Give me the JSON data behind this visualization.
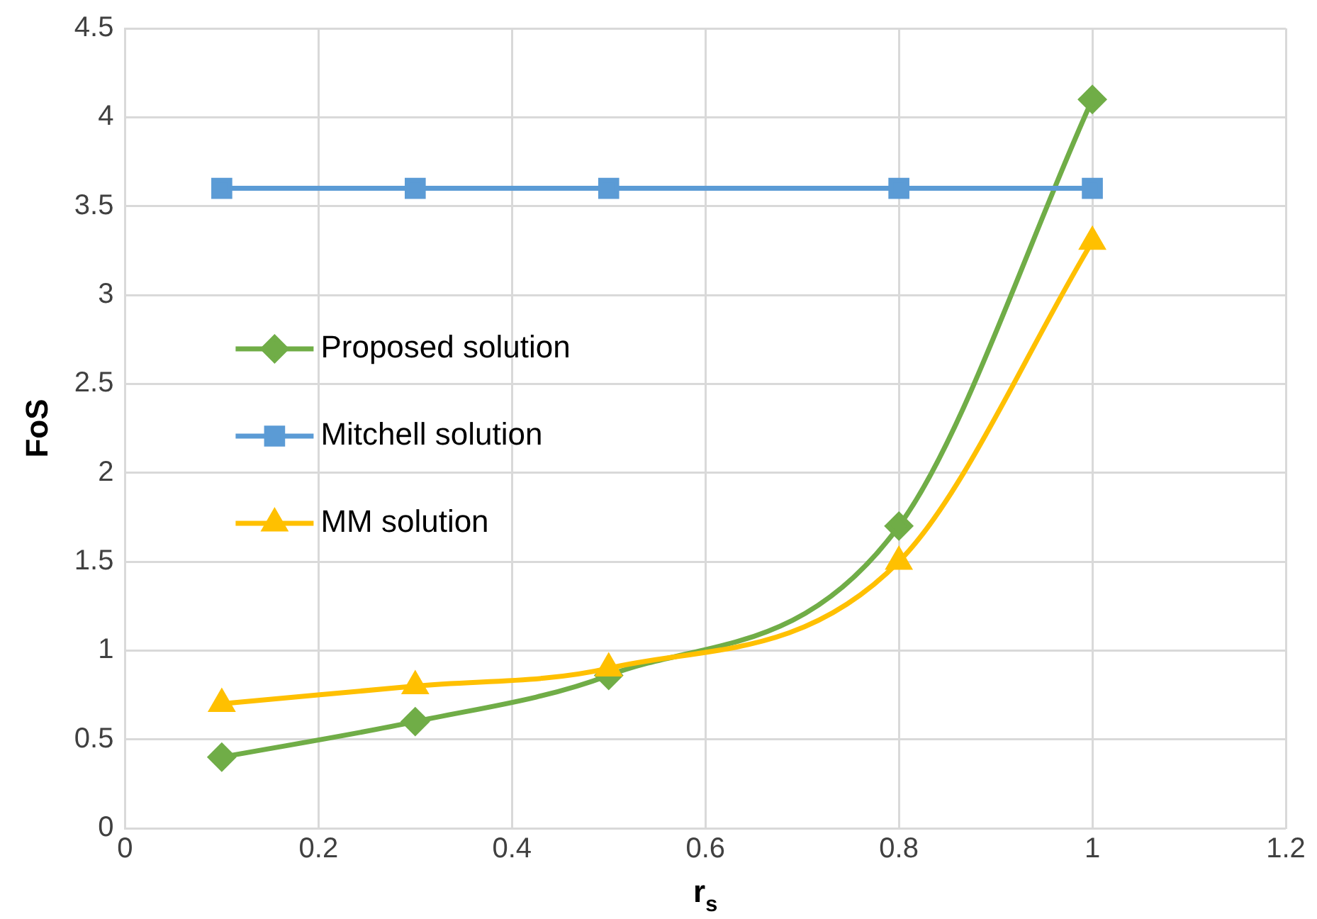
{
  "chart_data": {
    "type": "line",
    "xlabel": "r$_{s}$",
    "ylabel": "FoS",
    "x": [
      0.1,
      0.3,
      0.5,
      0.8,
      1.0
    ],
    "series": [
      {
        "name": "Proposed solution",
        "color": "#70ad47",
        "marker": "diamond",
        "values": [
          0.4,
          0.6,
          0.86,
          1.7,
          4.1
        ]
      },
      {
        "name": "Mitchell solution",
        "color": "#5b9bd5",
        "marker": "square",
        "values": [
          3.6,
          3.6,
          3.6,
          3.6,
          3.6
        ]
      },
      {
        "name": "MM solution",
        "color": "#ffc000",
        "marker": "triangle",
        "values": [
          0.7,
          0.8,
          0.9,
          1.5,
          3.3
        ]
      }
    ],
    "xlim": [
      0,
      1.2
    ],
    "xticks": [
      0,
      0.2,
      0.4,
      0.6,
      0.8,
      1,
      1.2
    ],
    "ylim": [
      0,
      4.5
    ],
    "yticks": [
      0,
      0.5,
      1,
      1.5,
      2,
      2.5,
      3,
      3.5,
      4,
      4.5
    ],
    "grid": true,
    "legend": "left"
  }
}
